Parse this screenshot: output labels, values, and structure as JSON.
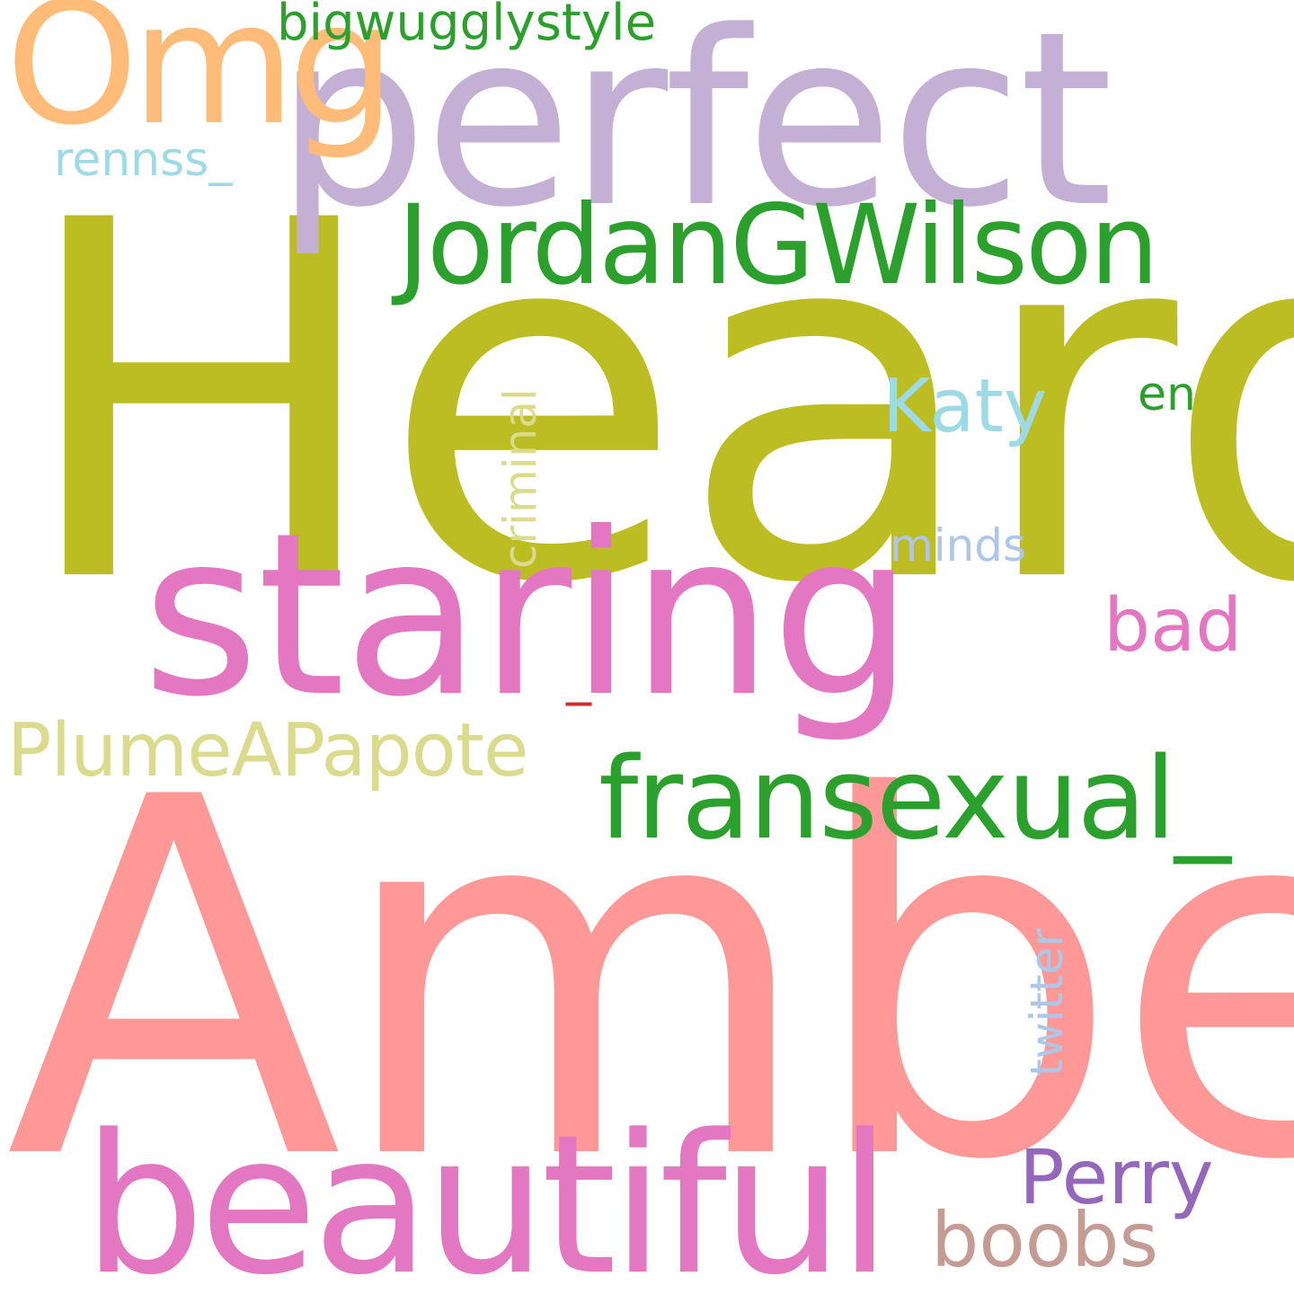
{
  "words": {
    "heard": {
      "text": "Heard",
      "color": "#bcbd22"
    },
    "amber": {
      "text": "Amber",
      "color": "#ff9896"
    },
    "perfect": {
      "text": "perfect",
      "color": "#c5b0d5"
    },
    "staring": {
      "text": "staring",
      "color": "#e377c2"
    },
    "beautiful": {
      "text": "beautiful",
      "color": "#e377c2"
    },
    "omg": {
      "text": "Omg",
      "color": "#ffbb78"
    },
    "jordangwilson": {
      "text": "JordanGWilson",
      "color": "#2ca02c"
    },
    "fransexual": {
      "text": "fransexual_",
      "color": "#2ca02c"
    },
    "plumeapapote": {
      "text": "PlumeAPapote",
      "color": "#dbdb8d"
    },
    "bigwugglystyle": {
      "text": "bigwugglystyle",
      "color": "#2ca02c"
    },
    "katy": {
      "text": "Katy",
      "color": "#9edae5"
    },
    "perry": {
      "text": "Perry",
      "color": "#9467bd"
    },
    "boobs": {
      "text": "boobs",
      "color": "#c49c94"
    },
    "bad": {
      "text": "bad",
      "color": "#e377c2"
    },
    "criminal": {
      "text": "criminal",
      "color": "#dbdb8d"
    },
    "twitter": {
      "text": "twitter",
      "color": "#aec7e8"
    },
    "minds": {
      "text": "minds",
      "color": "#aec7e8"
    },
    "en": {
      "text": "en",
      "color": "#2ca02c"
    },
    "rennss": {
      "text": "rennss_",
      "color": "#9edae5"
    },
    "underscore": {
      "text": "_",
      "color": "#d62728"
    }
  }
}
